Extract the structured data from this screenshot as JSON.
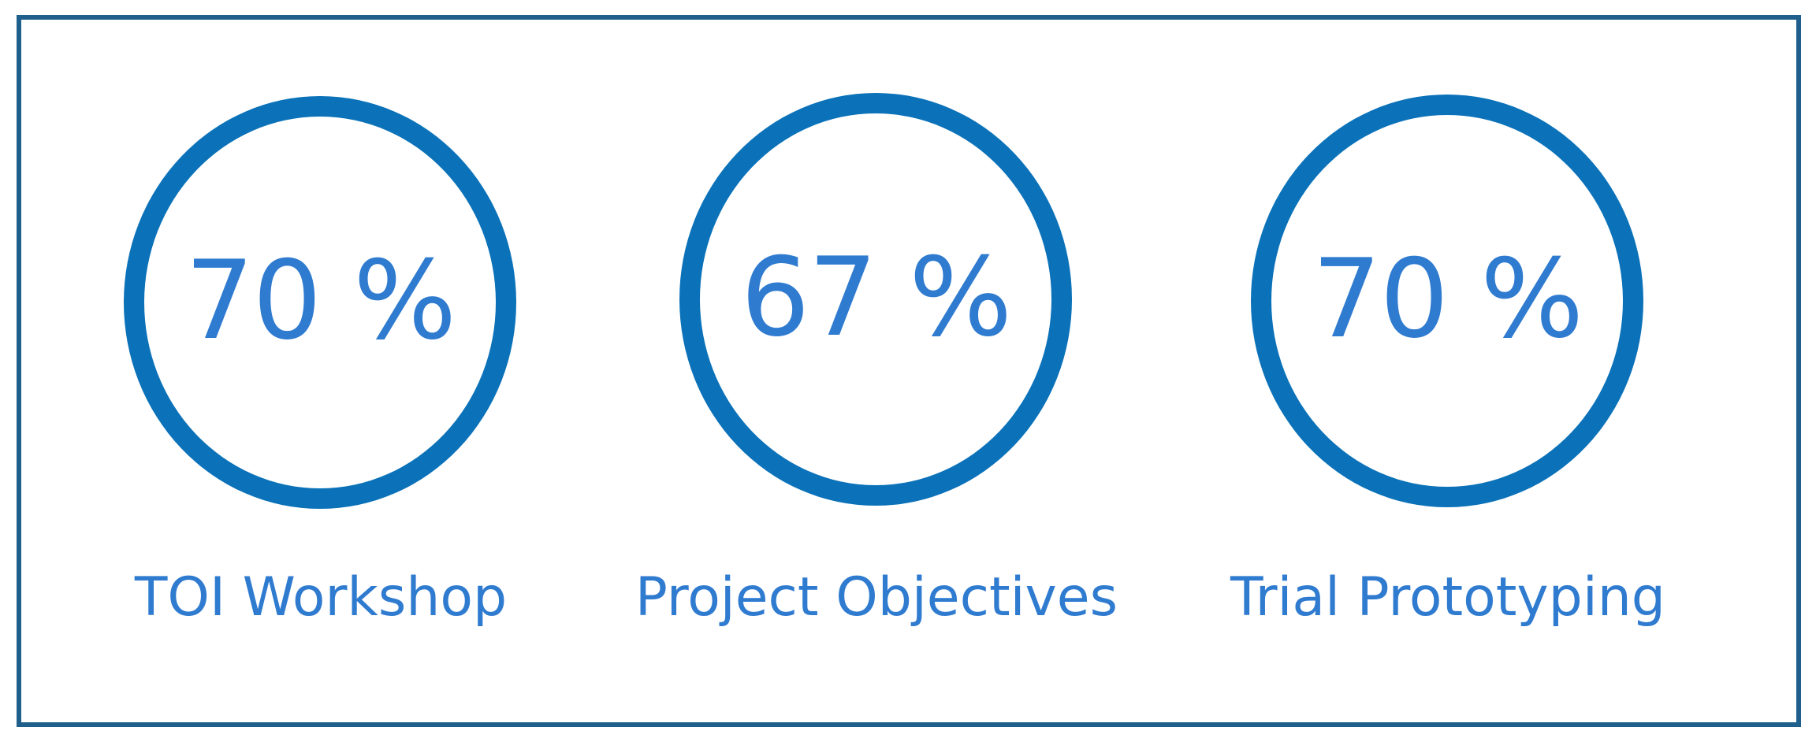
{
  "metrics": [
    {
      "value": "70 %",
      "label": "TOI Workshop",
      "percent": 70
    },
    {
      "value": "67 %",
      "label": "Project Objectives",
      "percent": 67
    },
    {
      "value": "70 %",
      "label": "Trial Prototyping",
      "percent": 70
    }
  ],
  "colors": {
    "frame_border": "#1f5f8b",
    "ring": "#0b72b9",
    "text": "#2f7bd0"
  }
}
